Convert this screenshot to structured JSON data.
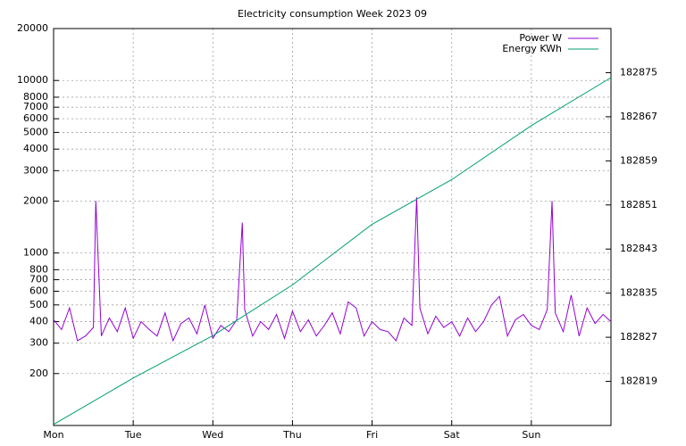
{
  "chart_data": {
    "type": "line",
    "title": "Electricity consumption Week 2023 09",
    "xlim": [
      0,
      7
    ],
    "xticks": [
      {
        "value": 0,
        "label": "Mon"
      },
      {
        "value": 1,
        "label": "Tue"
      },
      {
        "value": 2,
        "label": "Wed"
      },
      {
        "value": 3,
        "label": "Thu"
      },
      {
        "value": 4,
        "label": "Fri"
      },
      {
        "value": 5,
        "label": "Sat"
      },
      {
        "value": 6,
        "label": "Sun"
      }
    ],
    "ylim": [
      100,
      20000
    ],
    "ylog": true,
    "yticks": [
      200,
      300,
      400,
      500,
      600,
      700,
      800,
      1000,
      2000,
      3000,
      4000,
      5000,
      6000,
      7000,
      8000,
      10000,
      20000
    ],
    "y2lim": [
      182811,
      182883
    ],
    "y2ticks": [
      182819,
      182827,
      182835,
      182843,
      182851,
      182859,
      182867,
      182875
    ],
    "grid": true,
    "legend": "top-right",
    "series": [
      {
        "name": "Power W",
        "color": "#9400d3",
        "x": [
          0,
          0.1,
          0.2,
          0.3,
          0.4,
          0.5,
          0.53,
          0.6,
          0.7,
          0.8,
          0.9,
          1.0,
          1.1,
          1.2,
          1.3,
          1.4,
          1.5,
          1.6,
          1.7,
          1.8,
          1.9,
          2.0,
          2.1,
          2.2,
          2.3,
          2.37,
          2.4,
          2.5,
          2.6,
          2.7,
          2.8,
          2.9,
          3.0,
          3.1,
          3.2,
          3.3,
          3.4,
          3.5,
          3.6,
          3.7,
          3.8,
          3.9,
          4.0,
          4.1,
          4.2,
          4.3,
          4.4,
          4.5,
          4.56,
          4.6,
          4.7,
          4.8,
          4.9,
          5.0,
          5.1,
          5.2,
          5.3,
          5.4,
          5.5,
          5.6,
          5.7,
          5.8,
          5.9,
          6.0,
          6.1,
          6.2,
          6.26,
          6.3,
          6.4,
          6.5,
          6.6,
          6.7,
          6.8,
          6.9,
          7.0
        ],
        "values": [
          410,
          360,
          480,
          310,
          330,
          370,
          2000,
          330,
          420,
          350,
          480,
          320,
          400,
          360,
          330,
          450,
          310,
          390,
          420,
          340,
          500,
          320,
          380,
          350,
          410,
          1500,
          470,
          330,
          400,
          360,
          440,
          320,
          460,
          350,
          410,
          330,
          380,
          450,
          340,
          520,
          480,
          330,
          400,
          360,
          350,
          310,
          420,
          380,
          2100,
          480,
          340,
          430,
          370,
          400,
          330,
          420,
          350,
          400,
          500,
          560,
          330,
          410,
          440,
          380,
          360,
          470,
          2000,
          450,
          350,
          570,
          330,
          480,
          390,
          440,
          400
        ]
      },
      {
        "name": "Energy KWh",
        "color": "#009e73",
        "axis": "y2",
        "x": [
          0,
          1,
          2,
          3,
          4,
          5,
          6,
          7
        ],
        "values": [
          182811.2,
          182819.6,
          182827.3,
          182836.5,
          182847.5,
          182855.6,
          182865.4,
          182874.1
        ]
      }
    ]
  }
}
